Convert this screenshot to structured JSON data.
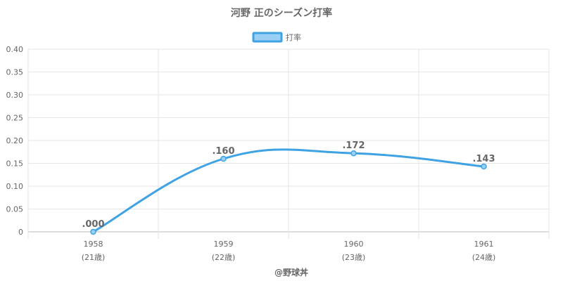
{
  "chart_data": {
    "type": "line",
    "title": "河野 正のシーズン打率",
    "categories": [
      "1958",
      "1959",
      "1960",
      "1961"
    ],
    "sublabels": [
      "(21歳)",
      "(22歳)",
      "(23歳)",
      "(24歳)"
    ],
    "series": [
      {
        "name": "打率",
        "values": [
          0.0,
          0.16,
          0.172,
          0.143
        ],
        "labels": [
          ".000",
          ".160",
          ".172",
          ".143"
        ]
      }
    ],
    "ylim": [
      0,
      0.4
    ],
    "yticks": [
      0,
      0.05,
      0.1,
      0.15,
      0.2,
      0.25,
      0.3,
      0.35,
      0.4
    ],
    "ytick_labels": [
      "0",
      "0.05",
      "0.10",
      "0.15",
      "0.20",
      "0.25",
      "0.30",
      "0.35",
      "0.40"
    ],
    "grid": true,
    "legend": "top-center",
    "line_color": "#3fa3e3",
    "fill_color": "#9bd0f5"
  },
  "footer": "@野球丼"
}
